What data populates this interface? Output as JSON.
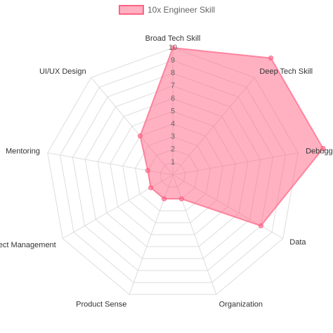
{
  "chart_data": {
    "type": "radar",
    "categories": [
      "Broad Tech Skill",
      "Deep Tech Skill",
      "Debugging",
      "Data",
      "Organization",
      "Product Sense",
      "Project Management",
      "Mentoring",
      "UI/UX Design"
    ],
    "series": [
      {
        "name": "10x Engineer Skill",
        "color": "#ff6384",
        "values": [
          10,
          12,
          12,
          8,
          2,
          2,
          2,
          2,
          4
        ]
      }
    ],
    "rlim": [
      0,
      10
    ],
    "rticks": [
      1,
      2,
      3,
      4,
      5,
      6,
      7,
      8,
      9,
      10
    ],
    "grid": true,
    "legend": "top"
  }
}
